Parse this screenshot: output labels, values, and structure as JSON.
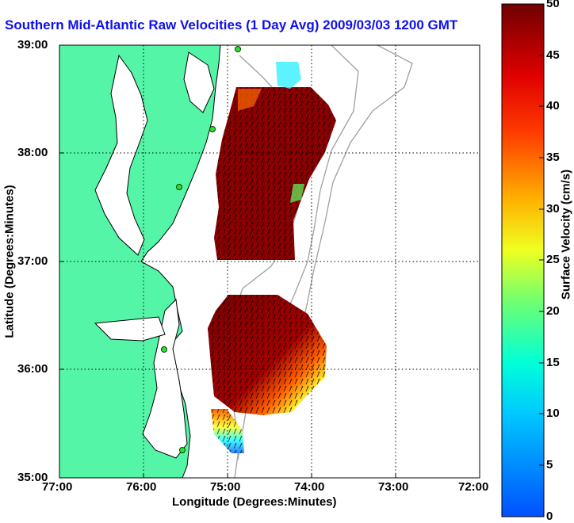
{
  "title": "Southern Mid-Atlantic Raw Velocities (1 Day Avg) 2009/03/03 1200 GMT",
  "x_axis": {
    "label": "Longitude (Degrees:Minutes)",
    "ticks": [
      "77:00",
      "76:00",
      "75:00",
      "74:00",
      "73:00",
      "72:00"
    ],
    "range": [
      -77,
      -72
    ]
  },
  "y_axis": {
    "label": "Latitude (Degrees:Minutes)",
    "ticks": [
      "39:00",
      "38:00",
      "37:00",
      "36:00",
      "35:00"
    ],
    "range": [
      35,
      39
    ]
  },
  "colorbar": {
    "label": "Surface Velocity (cm/s)",
    "ticks": [
      "50",
      "45",
      "40",
      "35",
      "30",
      "25",
      "20",
      "15",
      "10",
      "5",
      "0"
    ],
    "range": [
      0,
      50
    ]
  },
  "colors": {
    "land": "#55f5a8",
    "coast": "#000000",
    "grid": "#000000",
    "title": "#1010ee",
    "bathymetry": "#a0a0a0"
  },
  "grid": "dotted"
}
